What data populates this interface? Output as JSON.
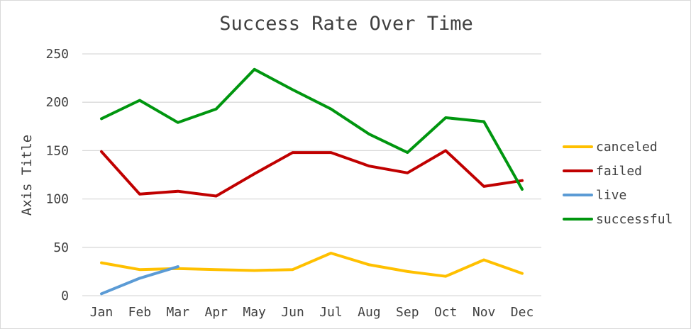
{
  "chart_data": {
    "type": "line",
    "title": "Success Rate Over Time",
    "xlabel": "",
    "ylabel": "Axis Title",
    "ylim": [
      0,
      250
    ],
    "yticks": [
      0,
      50,
      100,
      150,
      200,
      250
    ],
    "grid": true,
    "legend_position": "right",
    "categories": [
      "Jan",
      "Feb",
      "Mar",
      "Apr",
      "May",
      "Jun",
      "Jul",
      "Aug",
      "Sep",
      "Oct",
      "Nov",
      "Dec"
    ],
    "series": [
      {
        "name": "canceled",
        "color": "#FFC000",
        "values": [
          34,
          27,
          28,
          27,
          26,
          27,
          44,
          32,
          25,
          20,
          37,
          23
        ]
      },
      {
        "name": "failed",
        "color": "#C00000",
        "values": [
          149,
          105,
          108,
          103,
          126,
          148,
          148,
          134,
          127,
          150,
          113,
          119
        ]
      },
      {
        "name": "live",
        "color": "#5B9BD5",
        "values": [
          2,
          18,
          30,
          null,
          null,
          null,
          null,
          null,
          null,
          null,
          null,
          null
        ]
      },
      {
        "name": "successful",
        "color": "#00960F",
        "values": [
          183,
          202,
          179,
          193,
          234,
          213,
          193,
          167,
          148,
          184,
          180,
          110
        ]
      }
    ]
  }
}
